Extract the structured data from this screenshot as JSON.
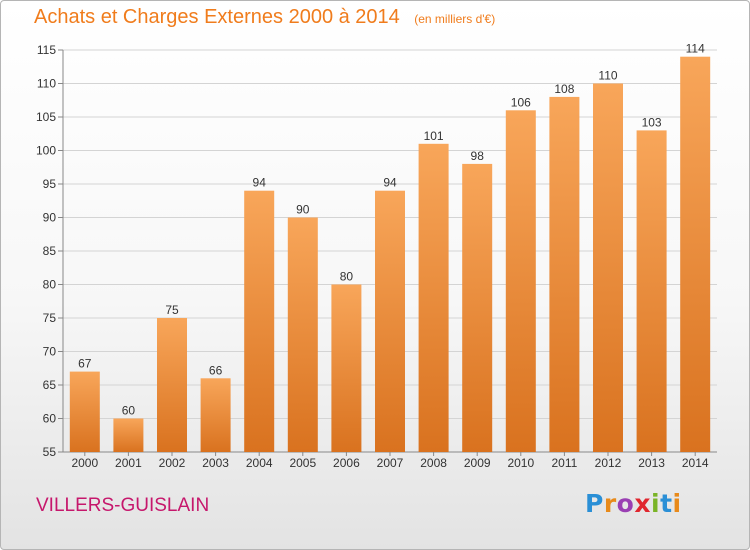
{
  "title": "Achats et Charges Externes 2000 à 2014",
  "subtitle": "(en milliers d'€)",
  "commune": "VILLERS-GUISLAIN",
  "logo_text": "Proxiti",
  "colors": {
    "title": "#f07c1c",
    "commune": "#c6176c",
    "bar_top": "#f8a65a",
    "bar_bottom": "#d9721f",
    "grid": "#d4d4d4"
  },
  "chart_data": {
    "type": "bar",
    "categories": [
      "2000",
      "2001",
      "2002",
      "2003",
      "2004",
      "2005",
      "2006",
      "2007",
      "2008",
      "2009",
      "2010",
      "2011",
      "2012",
      "2013",
      "2014"
    ],
    "values": [
      67,
      60,
      75,
      66,
      94,
      90,
      80,
      94,
      101,
      98,
      106,
      108,
      110,
      103,
      114
    ],
    "title": "Achats et Charges Externes 2000 à 2014",
    "subtitle": "(en milliers d'€)",
    "xlabel": "",
    "ylabel": "",
    "ylim": [
      55,
      115
    ],
    "yticks": [
      55,
      60,
      65,
      70,
      75,
      80,
      85,
      90,
      95,
      100,
      105,
      110,
      115
    ],
    "grid": true,
    "data_labels": true
  }
}
